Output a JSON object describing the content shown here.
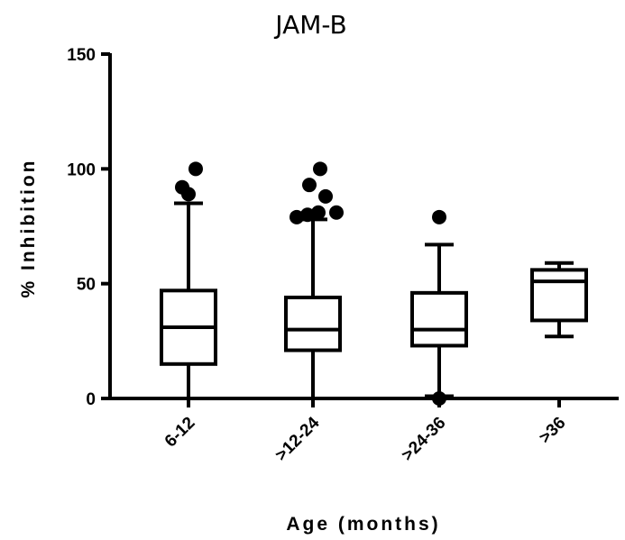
{
  "chart_data": {
    "type": "boxplot",
    "title": "JAM-B",
    "xlabel": "Age (months)",
    "ylabel": "% Inhibition",
    "ylim": [
      0,
      150
    ],
    "yticks": [
      0,
      50,
      100,
      150
    ],
    "categories": [
      "6-12",
      ">12-24",
      ">24-36",
      ">36"
    ],
    "boxes": [
      {
        "category": "6-12",
        "whisker_low": 0,
        "q1": 15,
        "median": 31,
        "q3": 47,
        "whisker_high": 85,
        "outliers": [
          89,
          92,
          100
        ]
      },
      {
        "category": ">12-24",
        "whisker_low": 0,
        "q1": 21,
        "median": 30,
        "q3": 44,
        "whisker_high": 78,
        "outliers": [
          79,
          80,
          81,
          81,
          88,
          93,
          100
        ]
      },
      {
        "category": ">24-36",
        "whisker_low": 1,
        "q1": 23,
        "median": 30,
        "q3": 46,
        "whisker_high": 67,
        "outliers": [
          0,
          79
        ]
      },
      {
        "category": ">36",
        "whisker_low": 27,
        "q1": 34,
        "median": 51,
        "q3": 56,
        "whisker_high": 59,
        "outliers": []
      }
    ],
    "colors": {
      "stroke": "#000000",
      "fill": "#ffffff"
    }
  }
}
